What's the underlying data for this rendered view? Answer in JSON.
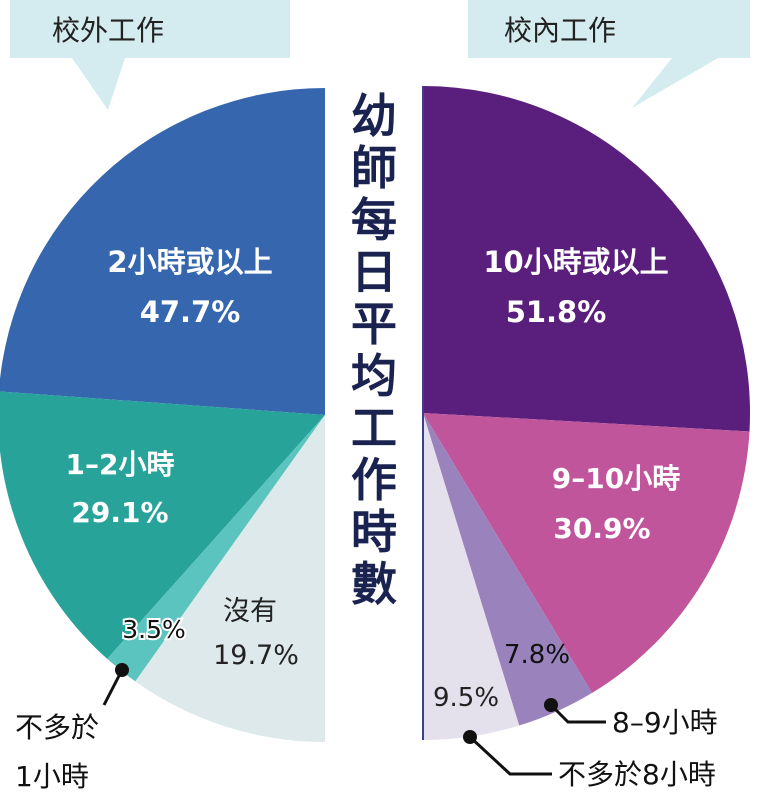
{
  "title": "幼師每日平均工作時數",
  "chart_data": [
    {
      "type": "pie",
      "title": "校外工作",
      "colors": [
        "#3566ae",
        "#27a39a",
        "#5cc4bf",
        "#dde9ea"
      ],
      "slices": [
        {
          "label": "2小時或以上",
          "value": 47.7,
          "value_label": "47.7%"
        },
        {
          "label": "1–2小時",
          "value": 29.1,
          "value_label": "29.1%"
        },
        {
          "label": "不多於1小時",
          "value": 3.5,
          "value_label": "3.5%"
        },
        {
          "label": "沒有",
          "value": 19.7,
          "value_label": "19.7%"
        }
      ]
    },
    {
      "type": "pie",
      "title": "校內工作",
      "colors": [
        "#5a1e7c",
        "#c0559c",
        "#9a82bd",
        "#e5e1ec"
      ],
      "slices": [
        {
          "label": "10小時或以上",
          "value": 51.8,
          "value_label": "51.8%"
        },
        {
          "label": "9–10小時",
          "value": 30.9,
          "value_label": "30.9%"
        },
        {
          "label": "8–9小時",
          "value": 7.8,
          "value_label": "7.8%"
        },
        {
          "label": "不多於8小時",
          "value": 9.5,
          "value_label": "9.5%"
        }
      ]
    }
  ]
}
